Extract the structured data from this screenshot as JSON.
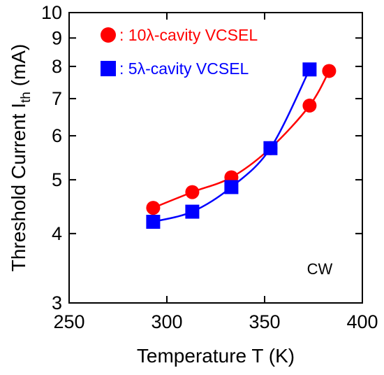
{
  "chart_data": {
    "type": "line",
    "xlabel": "Temperature T (K)",
    "ylabel_main": "Threshold Current I",
    "ylabel_sub": "th",
    "ylabel_unit": " (mA)",
    "xlim": [
      250,
      400
    ],
    "ylim": [
      3,
      10
    ],
    "yscale": "log",
    "grid": false,
    "x_ticks": [
      250,
      300,
      350,
      400
    ],
    "x_tick_labels": [
      "250",
      "300",
      "350",
      "400"
    ],
    "y_ticks": [
      3,
      4,
      5,
      6,
      7,
      8,
      9,
      10
    ],
    "y_tick_labels": [
      "3",
      "4",
      "5",
      "6",
      "7",
      "8",
      "9",
      "10"
    ],
    "legend_position": "top-left",
    "annotation": "CW",
    "series": [
      {
        "name": "10λ-cavity VCSEL",
        "legend_label": ":  10λ-cavity VCSEL",
        "marker": "circle",
        "color": "#ff0000",
        "x": [
          293,
          313,
          333,
          353,
          373,
          383
        ],
        "y": [
          4.45,
          4.75,
          5.05,
          5.7,
          6.8,
          7.85
        ]
      },
      {
        "name": "5λ-cavity VCSEL",
        "legend_label": ":  5λ-cavity VCSEL",
        "marker": "square",
        "color": "#0000ff",
        "x": [
          293,
          313,
          333,
          353,
          373
        ],
        "y": [
          4.2,
          4.38,
          4.85,
          5.7,
          7.9
        ]
      }
    ]
  }
}
